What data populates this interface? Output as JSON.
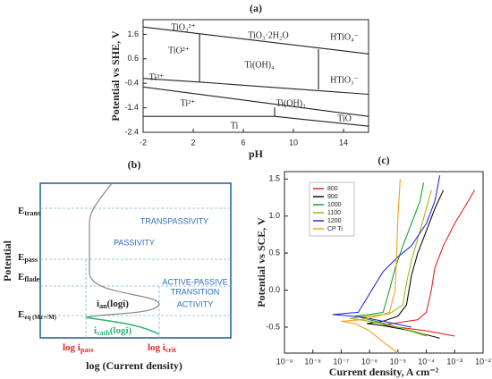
{
  "chart_data": [
    {
      "type": "line",
      "title": "(a)",
      "x_label": "pH",
      "y_label": "Potential vs SHE, V",
      "xlim": [
        -2,
        16
      ],
      "xticks": [
        -2,
        2,
        6,
        10,
        14
      ],
      "ylim": [
        -2.4,
        2.2
      ],
      "yticks": [
        -2.4,
        -1.4,
        -0.4,
        0.6,
        1.6
      ],
      "color": "#222",
      "series": [
        {
          "x": [
            -2,
            16
          ],
          "values": [
            1.9,
            0.8
          ]
        },
        {
          "x": [
            -2,
            2.5,
            16
          ],
          "values": [
            -0.2,
            -0.35,
            -0.85
          ]
        },
        {
          "x": [
            -2,
            16
          ],
          "values": [
            -0.55,
            -1.75
          ]
        },
        {
          "x": [
            -2,
            8.5,
            16
          ],
          "values": [
            -1.75,
            -1.75,
            -2.15
          ]
        },
        {
          "x": [
            2.5,
            2.5
          ],
          "values": [
            1.62,
            -0.35
          ]
        },
        {
          "x": [
            12,
            12
          ],
          "values": [
            1.0,
            -0.65
          ]
        },
        {
          "x": [
            8.5,
            8.5
          ],
          "values": [
            -1.38,
            -1.75
          ]
        }
      ],
      "annotations": [
        "TiO₃²⁺",
        "TiO²⁺",
        "TiO₃·2H₂O",
        "HTiO₄⁻",
        "Ti(OH)₄",
        "HTiO₃⁻",
        "Ti³⁺",
        "Ti²⁺",
        "Ti(OH)₃",
        "TiO",
        "Ti"
      ]
    },
    {
      "type": "schematic",
      "title": "(b)",
      "x_label": "log (Current density)",
      "y_label": "Potential",
      "regions": [
        "TRANSPASSIVITY",
        "PASSIVITY",
        "ACTIVE-PASSIVE",
        "TRANSITION",
        "ACTIVITY"
      ],
      "potentials": [
        {
          "main": "E",
          "sub": "trans"
        },
        {
          "main": "E",
          "sub": "pass"
        },
        {
          "main": "E",
          "sub": "flade"
        },
        {
          "main": "E",
          "sub": "eq (Mz+/M)"
        }
      ],
      "currents": [
        {
          "main": "log i",
          "sub": "pass"
        },
        {
          "main": "log i",
          "sub": "crit"
        }
      ],
      "curves": [
        {
          "main": "i",
          "sub": "an",
          "rest": "(logi)"
        },
        {
          "main": "i",
          "sub": "cath",
          "rest": "(logi)"
        }
      ]
    },
    {
      "type": "line",
      "title": "(c)",
      "x_label": "Current density, A cm⁻²",
      "y_label": "Potential vs SCE, V",
      "x_log": true,
      "xlim": [
        1e-09,
        0.01
      ],
      "xticks": [
        {
          "value": 1e-09,
          "label": "10⁻⁹"
        },
        {
          "value": 1e-08,
          "label": "10⁻⁸"
        },
        {
          "value": 1e-07,
          "label": "10⁻⁷"
        },
        {
          "value": 1e-06,
          "label": "10⁻⁶"
        },
        {
          "value": 1e-05,
          "label": "10⁻⁵"
        },
        {
          "value": 0.0001,
          "label": "10⁻⁴"
        },
        {
          "value": 0.001,
          "label": "10⁻³"
        },
        {
          "value": 0.01,
          "label": "10⁻²"
        }
      ],
      "ylim": [
        -0.85,
        1.6
      ],
      "yticks": [
        -0.5,
        {
          "value": 0,
          "label": "0.0"
        },
        0.5,
        {
          "value": 1,
          "label": "1.0"
        },
        1.5
      ],
      "legend": "upper left",
      "series": [
        {
          "name": "800",
          "color": "#e0262b",
          "x": [
            0.001,
            0.0001,
            1e-05,
            3e-06,
            1e-05,
            5e-05,
            0.0001,
            0.00015,
            0.0002,
            0.0004,
            0.001,
            0.003,
            0.005
          ],
          "values": [
            -0.62,
            -0.55,
            -0.5,
            -0.47,
            -0.44,
            -0.4,
            -0.3,
            0,
            0.3,
            0.6,
            0.9,
            1.2,
            1.35
          ]
        },
        {
          "name": "900",
          "color": "#111111",
          "x": [
            0.0003,
            3e-05,
            3e-06,
            8e-07,
            3e-06,
            1e-05,
            2e-05,
            3e-05,
            5e-05,
            0.0001,
            0.0002,
            0.0004
          ],
          "values": [
            -0.65,
            -0.55,
            -0.48,
            -0.45,
            -0.42,
            -0.35,
            -0.2,
            0.2,
            0.5,
            0.8,
            1.1,
            1.35
          ]
        },
        {
          "name": "1000",
          "color": "#18a332",
          "x": [
            0.0001,
            1e-05,
            1e-06,
            3e-07,
            1e-06,
            3e-06,
            5e-06,
            8e-06,
            1.5e-05,
            3e-05,
            6e-05,
            8e-05
          ],
          "values": [
            -0.62,
            -0.5,
            -0.4,
            -0.35,
            -0.33,
            -0.3,
            0,
            0.3,
            0.6,
            0.9,
            1.2,
            1.45
          ]
        },
        {
          "name": "1100",
          "color": "#a8b520",
          "x": [
            0.0001,
            1e-05,
            1e-06,
            2e-07,
            1e-06,
            5e-06,
            1.5e-05,
            2e-05,
            3e-05,
            6e-05,
            0.0001,
            0.00015
          ],
          "values": [
            -0.6,
            -0.5,
            -0.42,
            -0.38,
            -0.35,
            -0.32,
            -0.2,
            0.1,
            0.4,
            0.8,
            1.1,
            1.35
          ]
        },
        {
          "name": "1200",
          "color": "#2a2fd6",
          "x": [
            3e-05,
            3e-06,
            5e-07,
            5e-08,
            4e-07,
            1e-06,
            3e-06,
            1e-05,
            3e-05,
            0.0001,
            0.0002,
            0.0003
          ],
          "values": [
            -0.5,
            -0.42,
            -0.36,
            -0.33,
            -0.3,
            -0.05,
            0.25,
            0.45,
            0.6,
            0.9,
            1.2,
            1.55
          ]
        },
        {
          "name": "CP Ti",
          "color": "#f5a11a",
          "x": [
            1e-05,
            3e-06,
            1e-06,
            3e-07,
            1e-07,
            5e-07,
            2e-06,
            5e-06,
            8e-06,
            9e-06,
            1e-05,
            1.2e-05
          ],
          "values": [
            -0.85,
            -0.7,
            -0.55,
            -0.45,
            -0.42,
            -0.4,
            -0.35,
            -0.3,
            0,
            0.5,
            1.0,
            1.5
          ]
        }
      ]
    }
  ]
}
